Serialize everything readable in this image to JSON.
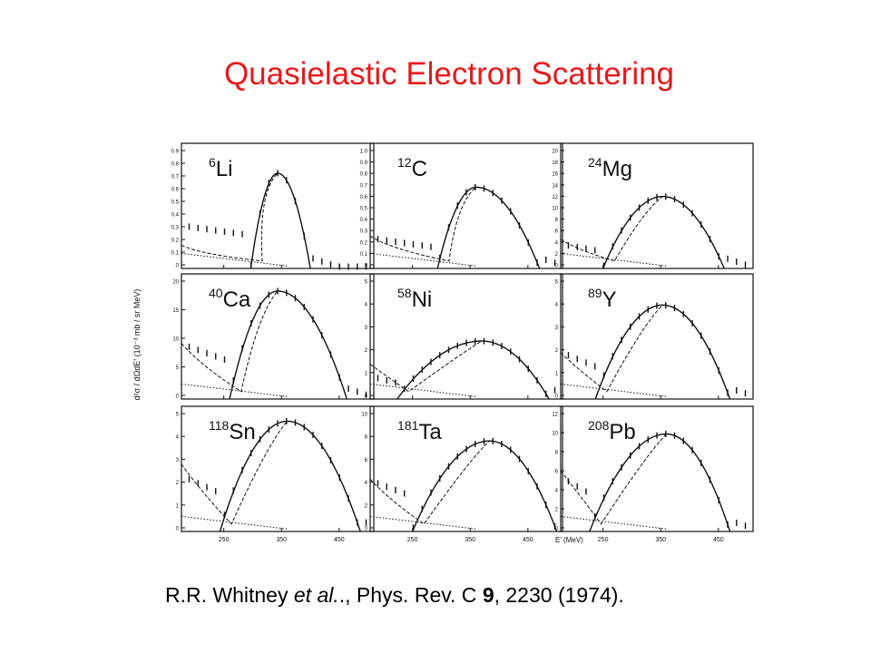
{
  "title": "Quasielastic Electron Scattering",
  "citation": {
    "authors": "R.R. Whitney",
    "etal": "et al.",
    "journal": "., Phys. Rev. C",
    "volume": "9",
    "rest": ", 2230 (1974)."
  },
  "figure": {
    "y_axis_label": "d²σ / dΩdE′ (10⁻³ mb / sr MeV)",
    "x_axis_label": "E′ (MeV)",
    "x_ticks": [
      "250",
      "350",
      "450"
    ],
    "panels": [
      {
        "mass": "6",
        "element": "Li",
        "y_ticks": [
          "0.9",
          "0.8",
          "0.7",
          "0.6",
          "0.5",
          "0.4",
          "0.3",
          "0.2",
          "0.1",
          "0"
        ],
        "peak_frac": 0.82,
        "peak_pos": 0.5,
        "l": 0.36,
        "r": 0.67,
        "tail": 0.2,
        "rise": 0.28,
        "bump": 0.1
      },
      {
        "mass": "12",
        "element": "C",
        "y_ticks": [
          "1.0",
          "0.9",
          "0.8",
          "0.7",
          "0.6",
          "0.5",
          "0.4",
          "0.3",
          "0.2",
          "0.1",
          "0"
        ],
        "peak_frac": 0.7,
        "peak_pos": 0.55,
        "l": 0.35,
        "r": 0.88,
        "tail": 0.28,
        "rise": 0.28,
        "bump": 0.0
      },
      {
        "mass": "24",
        "element": "Mg",
        "y_ticks": [
          "20",
          "18",
          "16",
          "14",
          "12",
          "10",
          "8",
          "6",
          "4",
          "2",
          "0"
        ],
        "peak_frac": 0.62,
        "peak_pos": 0.53,
        "l": 0.22,
        "r": 0.85,
        "tail": 0.25,
        "rise": 0.22,
        "bump": 0.0
      },
      {
        "mass": "40",
        "element": "Ca",
        "y_ticks": [
          "20",
          "15",
          "10",
          "5",
          "0"
        ],
        "peak_frac": 0.93,
        "peak_pos": 0.5,
        "l": 0.25,
        "r": 0.86,
        "tail": 0.48,
        "rise": 0.5,
        "bump": 0.0
      },
      {
        "mass": "58",
        "element": "Ni",
        "y_ticks": [
          "5",
          "4",
          "3",
          "2",
          "1",
          "0"
        ],
        "peak_frac": 0.5,
        "peak_pos": 0.58,
        "l": 0.14,
        "r": 0.93,
        "tail": 0.3,
        "rise": 0.2,
        "bump": 0.0
      },
      {
        "mass": "89",
        "element": "Y",
        "y_ticks": [
          "5",
          "4",
          "3",
          "2",
          "1",
          "0"
        ],
        "peak_frac": 0.81,
        "peak_pos": 0.53,
        "l": 0.18,
        "r": 0.88,
        "tail": 0.4,
        "rise": 0.42,
        "bump": 0.0
      },
      {
        "mass": "118",
        "element": "Sn",
        "y_ticks": [
          "5",
          "4",
          "3",
          "2",
          "1",
          "0"
        ],
        "peak_frac": 0.95,
        "peak_pos": 0.55,
        "l": 0.2,
        "r": 0.93,
        "tail": 0.58,
        "rise": 0.5,
        "bump": 0.0
      },
      {
        "mass": "181",
        "element": "Ta",
        "y_ticks": [
          "10",
          "8",
          "6",
          "4",
          "2",
          "0"
        ],
        "peak_frac": 0.78,
        "peak_pos": 0.62,
        "l": 0.22,
        "r": 0.97,
        "tail": 0.45,
        "rise": 0.46,
        "bump": 0.0
      },
      {
        "mass": "208",
        "element": "Pb",
        "y_ticks": [
          "12",
          "10",
          "8",
          "6",
          "4",
          "2",
          "0"
        ],
        "peak_frac": 0.84,
        "peak_pos": 0.55,
        "l": 0.15,
        "r": 0.88,
        "tail": 0.52,
        "rise": 0.48,
        "bump": 0.0
      }
    ]
  }
}
